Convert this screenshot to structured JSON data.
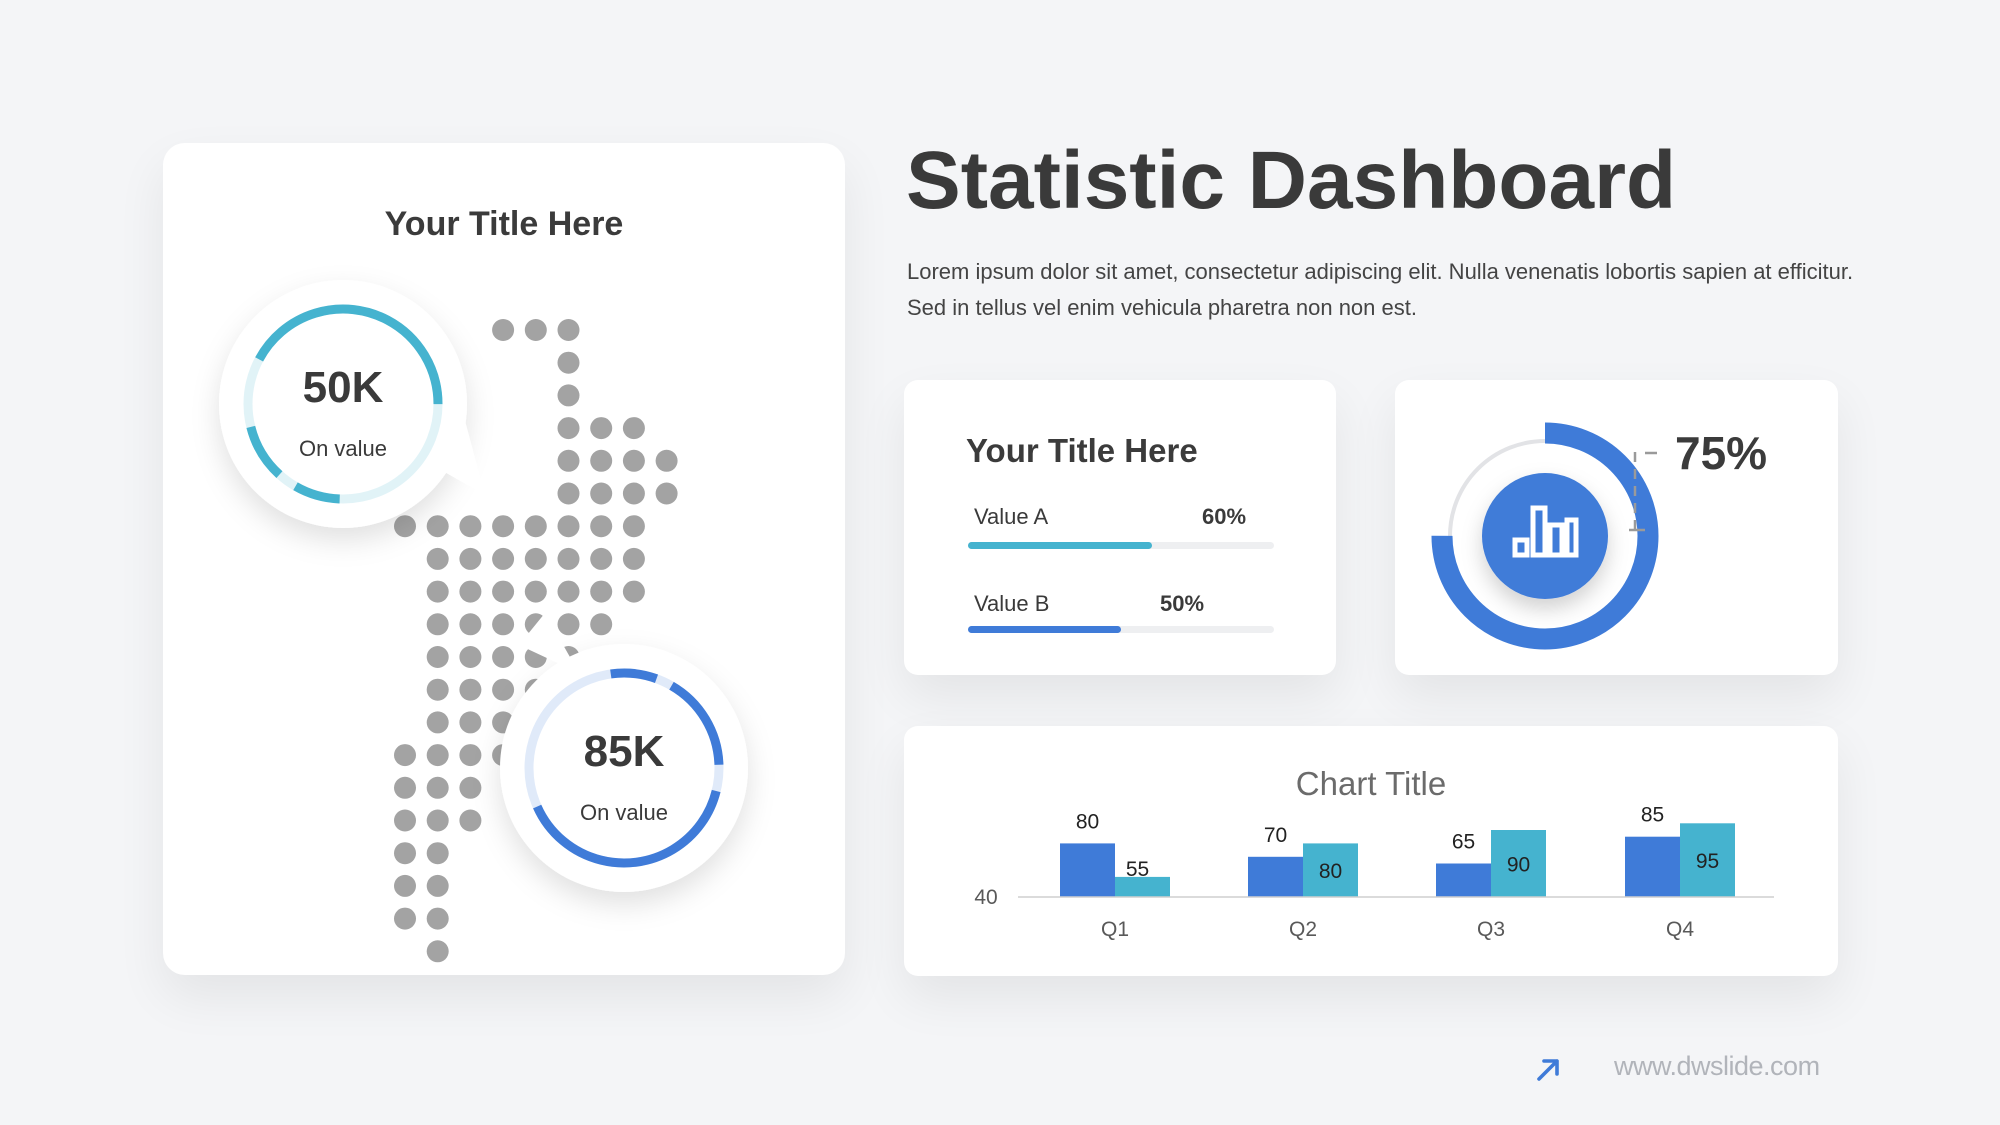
{
  "page": {
    "title": "Statistic Dashboard",
    "description": "Lorem ipsum dolor sit amet, consectetur adipiscing elit. Nulla venenatis lobortis sapien at efficitur. Sed in tellus vel enim vehicula pharetra non non est."
  },
  "map_card": {
    "title": "Your Title Here",
    "callouts": [
      {
        "value": "50K",
        "label": "On value",
        "color": "#45b3cf"
      },
      {
        "value": "85K",
        "label": "On value",
        "color": "#3f7bd8"
      }
    ],
    "dot_color": "#a3a3a3"
  },
  "progress_card": {
    "title": "Your Title Here",
    "items": [
      {
        "label": "Value A",
        "percent_label": "60%",
        "fraction": 0.6,
        "color": "#45b3cf"
      },
      {
        "label": "Value B",
        "percent_label": "50%",
        "fraction": 0.5,
        "color": "#3f7bd8"
      }
    ]
  },
  "donut_card": {
    "percent_label": "75%",
    "fraction": 0.75,
    "color": "#3f7bd8",
    "icon": "bar-chart-icon"
  },
  "chart_data": {
    "type": "bar",
    "title": "Chart Title",
    "categories": [
      "Q1",
      "Q2",
      "Q3",
      "Q4"
    ],
    "series": [
      {
        "values": [
          80,
          70,
          65,
          85
        ],
        "color": "#3f7bd8"
      },
      {
        "values": [
          55,
          80,
          90,
          95
        ],
        "color": "#45b3cf"
      }
    ],
    "y_tick_label": "40",
    "ylim": [
      40,
      100
    ],
    "grid": false,
    "legend": "none"
  },
  "footer": {
    "url": "www.dwslide.com",
    "logo": "arrow-up-right-icon"
  },
  "colors": {
    "background": "#f4f5f7",
    "blue": "#3f7bd8",
    "teal": "#45b3cf",
    "text": "#3a3a3a"
  }
}
